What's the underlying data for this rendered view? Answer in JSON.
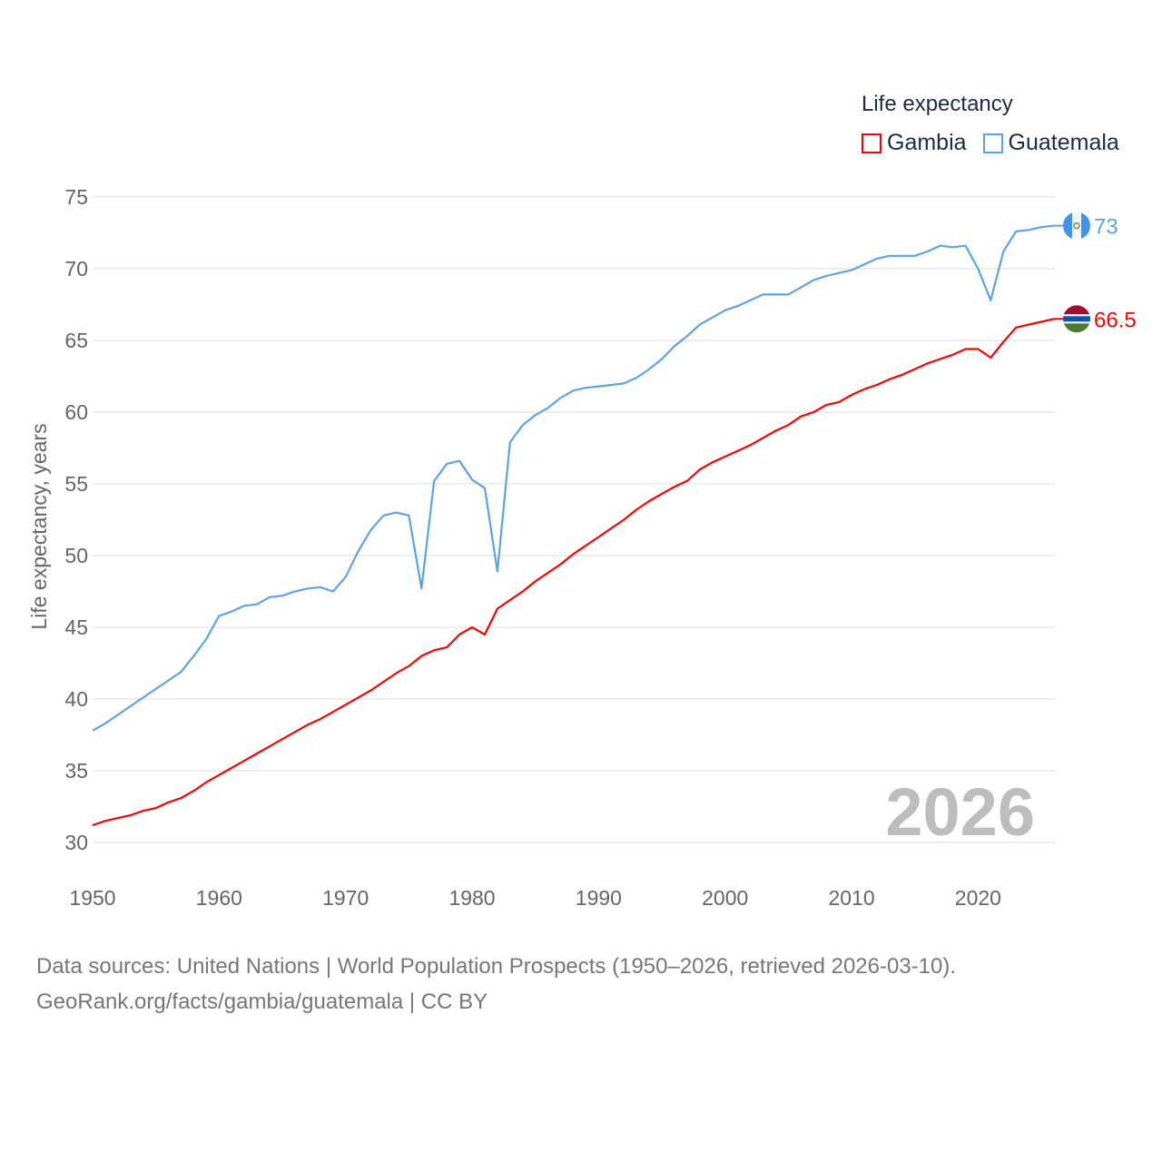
{
  "legend": {
    "title": "Life expectancy",
    "items": [
      "Gambia",
      "Guatemala"
    ]
  },
  "footer": {
    "line1": "Data sources: United Nations | World Population Prospects (1950–2026, retrieved 2026-03-10).",
    "line2": "GeoRank.org/facts/gambia/guatemala | CC BY"
  },
  "chart_data": {
    "type": "line",
    "title": "Life expectancy",
    "xlabel": "",
    "ylabel": "Life expectancy, years",
    "xlim": [
      1950,
      2026
    ],
    "ylim": [
      30,
      75
    ],
    "yticks": [
      30,
      35,
      40,
      45,
      50,
      55,
      60,
      65,
      70,
      75
    ],
    "xticks": [
      1950,
      1960,
      1970,
      1980,
      1990,
      2000,
      2010,
      2020
    ],
    "grid": true,
    "legend_position": "top-right",
    "year_watermark": "2026",
    "x_start": 1950,
    "series": [
      {
        "name": "Gambia",
        "color": "#ff0000",
        "end_label": "66.5",
        "flag": "gambia-flag",
        "values": [
          31.2,
          31.5,
          31.7,
          31.9,
          32.2,
          32.4,
          32.8,
          33.1,
          33.6,
          34.2,
          34.7,
          35.2,
          35.7,
          36.2,
          36.7,
          37.2,
          37.7,
          38.2,
          38.6,
          39.1,
          39.6,
          40.1,
          40.6,
          41.2,
          41.8,
          42.3,
          43.0,
          43.4,
          43.6,
          44.5,
          45.0,
          44.5,
          46.3,
          46.9,
          47.5,
          48.2,
          48.8,
          49.4,
          50.1,
          50.7,
          51.3,
          51.9,
          52.5,
          53.2,
          53.8,
          54.3,
          54.8,
          55.2,
          56.0,
          56.5,
          56.9,
          57.3,
          57.7,
          58.2,
          58.7,
          59.1,
          59.7,
          60.0,
          60.5,
          60.7,
          61.2,
          61.6,
          61.9,
          62.3,
          62.6,
          63.0,
          63.4,
          63.7,
          64.0,
          64.4,
          64.4,
          63.8,
          64.9,
          65.9,
          66.1,
          66.3,
          66.5
        ]
      },
      {
        "name": "Guatemala",
        "color": "#5ba4ea",
        "end_label": "73",
        "flag": "guatemala-flag",
        "values": [
          37.8,
          38.3,
          38.9,
          39.5,
          40.1,
          40.7,
          41.3,
          41.9,
          43.0,
          44.2,
          45.8,
          46.1,
          46.5,
          46.6,
          47.1,
          47.2,
          47.5,
          47.7,
          47.8,
          47.5,
          48.5,
          50.3,
          51.8,
          52.8,
          53.0,
          52.8,
          47.7,
          55.2,
          56.4,
          56.6,
          55.3,
          54.7,
          48.9,
          57.9,
          59.1,
          59.8,
          60.3,
          61.0,
          61.5,
          61.7,
          61.8,
          61.9,
          62.0,
          62.4,
          63.0,
          63.7,
          64.6,
          65.3,
          66.1,
          66.6,
          67.1,
          67.4,
          67.8,
          68.2,
          68.2,
          68.2,
          68.7,
          69.2,
          69.5,
          69.7,
          69.9,
          70.3,
          70.7,
          70.9,
          70.9,
          70.9,
          71.2,
          71.6,
          71.5,
          71.6,
          70.0,
          67.8,
          71.2,
          72.6,
          72.7,
          72.9,
          73.0
        ]
      }
    ]
  }
}
